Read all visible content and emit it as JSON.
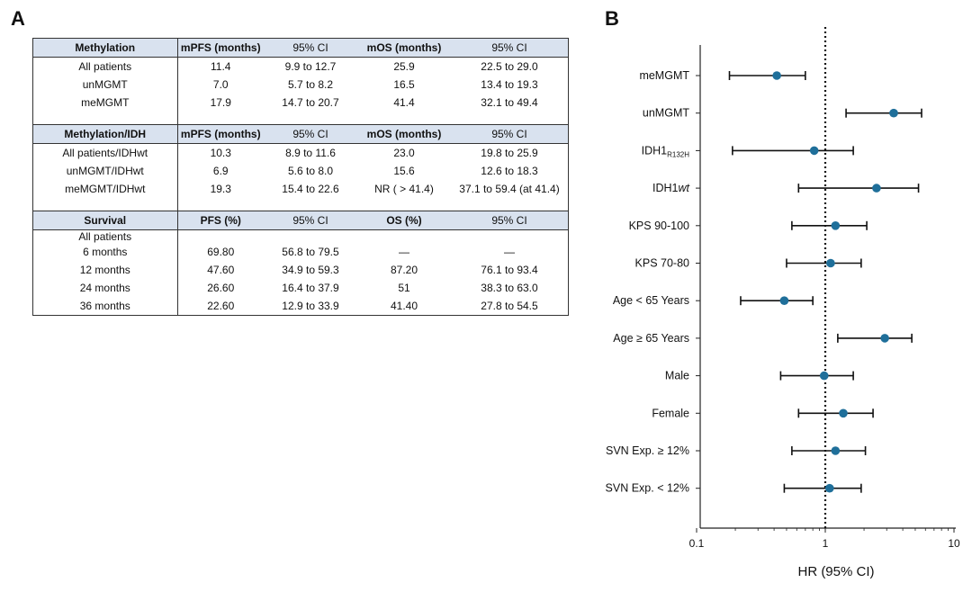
{
  "panel_a_label": "A",
  "panel_b_label": "B",
  "tables": [
    {
      "headers": [
        "Methylation",
        "mPFS (months)",
        "95% CI",
        "mOS (months)",
        "95% CI"
      ],
      "rows": [
        [
          "All patients",
          "11.4",
          "9.9 to 12.7",
          "25.9",
          "22.5 to 29.0"
        ],
        [
          "unMGMT",
          "7.0",
          "5.7 to 8.2",
          "16.5",
          "13.4 to 19.3"
        ],
        [
          "meMGMT",
          "17.9",
          "14.7 to 20.7",
          "41.4",
          "32.1 to 49.4"
        ]
      ]
    },
    {
      "headers": [
        "Methylation/IDH",
        "mPFS (months)",
        "95% CI",
        "mOS (months)",
        "95% CI"
      ],
      "rows": [
        [
          "All patients/IDHwt",
          "10.3",
          "8.9 to 11.6",
          "23.0",
          "19.8 to 25.9"
        ],
        [
          "unMGMT/IDHwt",
          "6.9",
          "5.6 to 8.0",
          "15.6",
          "12.6 to 18.3"
        ],
        [
          "meMGMT/IDHwt",
          "19.3",
          "15.4 to 22.6",
          "NR ( > 41.4)",
          "37.1 to 59.4 (at 41.4)"
        ]
      ]
    },
    {
      "headers": [
        "Survival",
        "PFS (%)",
        "95% CI",
        "OS (%)",
        "95% CI"
      ],
      "group_label": "All patients",
      "rows": [
        [
          "6 months",
          "69.80",
          "56.8 to 79.5",
          "—",
          "—"
        ],
        [
          "12 months",
          "47.60",
          "34.9 to 59.3",
          "87.20",
          "76.1 to 93.4"
        ],
        [
          "24 months",
          "26.60",
          "16.4 to 37.9",
          "51",
          "38.3 to 63.0"
        ],
        [
          "36 months",
          "22.60",
          "12.9 to 33.9",
          "41.40",
          "27.8 to 54.5"
        ]
      ]
    }
  ],
  "chart_data": {
    "type": "forest",
    "xscale": "log",
    "xlim": [
      0.1,
      10
    ],
    "xticks": [
      "0.1",
      "1",
      "10"
    ],
    "reference_line": 1,
    "xlabel": "HR (95% CI)",
    "marker_color": "#1f6f9a",
    "rows": [
      {
        "label": "meMGMT",
        "hr": 0.42,
        "lo": 0.18,
        "hi": 0.7
      },
      {
        "label": "unMGMT",
        "label_html": null,
        "hr": 3.4,
        "lo": 1.45,
        "hi": 5.6
      },
      {
        "label": "IDH1",
        "sub": "R132H",
        "hr": 0.82,
        "lo": 0.19,
        "hi": 1.65
      },
      {
        "label": "IDH1",
        "italic_suffix": "wt",
        "hr": 2.5,
        "lo": 0.62,
        "hi": 5.3
      },
      {
        "label": "KPS 90-100",
        "hr": 1.2,
        "lo": 0.55,
        "hi": 2.1
      },
      {
        "label": "KPS 70-80",
        "hr": 1.1,
        "lo": 0.5,
        "hi": 1.9
      },
      {
        "label": "Age < 65 Years",
        "hr": 0.48,
        "lo": 0.22,
        "hi": 0.8
      },
      {
        "label": "Age ≥ 65 Years",
        "hr": 2.9,
        "lo": 1.25,
        "hi": 4.7
      },
      {
        "label": "Male",
        "hr": 0.98,
        "lo": 0.45,
        "hi": 1.65
      },
      {
        "label": "Female",
        "hr": 1.38,
        "lo": 0.62,
        "hi": 2.35
      },
      {
        "label": "SVN Exp. ≥ 12%",
        "hr": 1.2,
        "lo": 0.55,
        "hi": 2.05
      },
      {
        "label": "SVN Exp. < 12%",
        "hr": 1.08,
        "lo": 0.48,
        "hi": 1.9
      }
    ]
  }
}
